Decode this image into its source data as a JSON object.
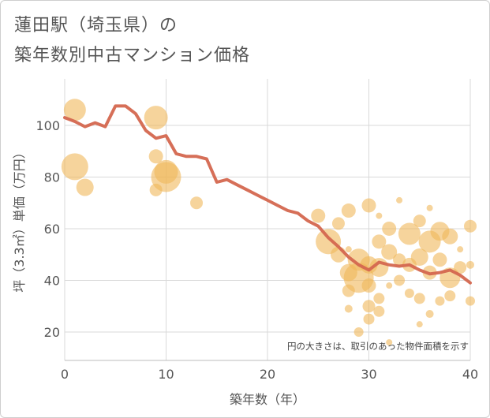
{
  "chart_data": {
    "type": "scatter",
    "title": "蓮田駅（埼玉県）の",
    "subtitle": "築年数別中古マンション価格",
    "xlabel": "築年数（年）",
    "ylabel": "坪（3.3㎡）単価（万円）",
    "xlim": [
      0,
      40
    ],
    "ylim": [
      9,
      118
    ],
    "xticks": [
      0,
      10,
      20,
      30,
      40
    ],
    "yticks": [
      20,
      40,
      60,
      80,
      100
    ],
    "grid": true,
    "note": "円の大きさは、取引のあった物件面積を示す",
    "colors": {
      "bubble": "#f0b85a",
      "line": "#d4674f"
    },
    "scatter": [
      {
        "x": 1,
        "y": 106,
        "s": 14
      },
      {
        "x": 1,
        "y": 84,
        "s": 17
      },
      {
        "x": 2,
        "y": 76,
        "s": 11
      },
      {
        "x": 9,
        "y": 103,
        "s": 15
      },
      {
        "x": 9,
        "y": 88,
        "s": 9
      },
      {
        "x": 9,
        "y": 75,
        "s": 8
      },
      {
        "x": 10,
        "y": 80,
        "s": 19
      },
      {
        "x": 10,
        "y": 82,
        "s": 15
      },
      {
        "x": 13,
        "y": 70,
        "s": 8
      },
      {
        "x": 25,
        "y": 65,
        "s": 9
      },
      {
        "x": 26,
        "y": 55,
        "s": 16
      },
      {
        "x": 27,
        "y": 50,
        "s": 10
      },
      {
        "x": 28,
        "y": 67,
        "s": 9
      },
      {
        "x": 27,
        "y": 62,
        "s": 8
      },
      {
        "x": 28,
        "y": 43,
        "s": 11
      },
      {
        "x": 28,
        "y": 36,
        "s": 8
      },
      {
        "x": 28,
        "y": 29,
        "s": 5
      },
      {
        "x": 29,
        "y": 41,
        "s": 19
      },
      {
        "x": 29,
        "y": 48,
        "s": 14
      },
      {
        "x": 29,
        "y": 20,
        "s": 6
      },
      {
        "x": 30,
        "y": 69,
        "s": 9
      },
      {
        "x": 30,
        "y": 46,
        "s": 11
      },
      {
        "x": 30,
        "y": 38,
        "s": 9
      },
      {
        "x": 30,
        "y": 30,
        "s": 8
      },
      {
        "x": 30,
        "y": 25,
        "s": 7
      },
      {
        "x": 31,
        "y": 55,
        "s": 9
      },
      {
        "x": 31,
        "y": 45,
        "s": 12
      },
      {
        "x": 31,
        "y": 33,
        "s": 7
      },
      {
        "x": 31,
        "y": 28,
        "s": 7
      },
      {
        "x": 32,
        "y": 51,
        "s": 10
      },
      {
        "x": 32,
        "y": 60,
        "s": 9
      },
      {
        "x": 32,
        "y": 16,
        "s": 4
      },
      {
        "x": 33,
        "y": 48,
        "s": 8
      },
      {
        "x": 33,
        "y": 40,
        "s": 7
      },
      {
        "x": 34,
        "y": 58,
        "s": 14
      },
      {
        "x": 34,
        "y": 46,
        "s": 9
      },
      {
        "x": 34,
        "y": 35,
        "s": 6
      },
      {
        "x": 35,
        "y": 49,
        "s": 11
      },
      {
        "x": 35,
        "y": 63,
        "s": 8
      },
      {
        "x": 35,
        "y": 33,
        "s": 7
      },
      {
        "x": 36,
        "y": 55,
        "s": 14
      },
      {
        "x": 36,
        "y": 43,
        "s": 9
      },
      {
        "x": 36,
        "y": 27,
        "s": 5
      },
      {
        "x": 37,
        "y": 59,
        "s": 12
      },
      {
        "x": 37,
        "y": 48,
        "s": 9
      },
      {
        "x": 37,
        "y": 32,
        "s": 6
      },
      {
        "x": 38,
        "y": 57,
        "s": 10
      },
      {
        "x": 38,
        "y": 41,
        "s": 13
      },
      {
        "x": 38,
        "y": 34,
        "s": 7
      },
      {
        "x": 39,
        "y": 45,
        "s": 8
      },
      {
        "x": 40,
        "y": 61,
        "s": 8
      },
      {
        "x": 40,
        "y": 32,
        "s": 6
      },
      {
        "x": 40,
        "y": 46,
        "s": 5
      },
      {
        "x": 31,
        "y": 65,
        "s": 4
      },
      {
        "x": 33,
        "y": 71,
        "s": 4
      },
      {
        "x": 28,
        "y": 52,
        "s": 4
      },
      {
        "x": 36,
        "y": 68,
        "s": 4
      },
      {
        "x": 35,
        "y": 23,
        "s": 4
      },
      {
        "x": 39,
        "y": 52,
        "s": 4
      },
      {
        "x": 32,
        "y": 38,
        "s": 4
      }
    ],
    "line": {
      "x": [
        0,
        1,
        2,
        3,
        4,
        5,
        6,
        7,
        8,
        9,
        10,
        11,
        12,
        13,
        14,
        15,
        16,
        17,
        18,
        19,
        20,
        21,
        22,
        23,
        24,
        25,
        26,
        27,
        28,
        29,
        30,
        31,
        32,
        33,
        34,
        35,
        36,
        37,
        38,
        39,
        40
      ],
      "y": [
        103,
        101.5,
        99.5,
        101,
        99.5,
        107.5,
        107.5,
        104.5,
        98,
        95,
        96,
        89,
        88,
        88,
        87,
        78,
        79,
        77,
        75,
        73,
        71,
        69,
        67,
        66,
        63,
        61,
        56.5,
        53,
        49,
        46,
        44,
        47,
        46,
        45.5,
        46,
        44,
        42.5,
        43,
        44,
        42,
        39
      ]
    }
  }
}
